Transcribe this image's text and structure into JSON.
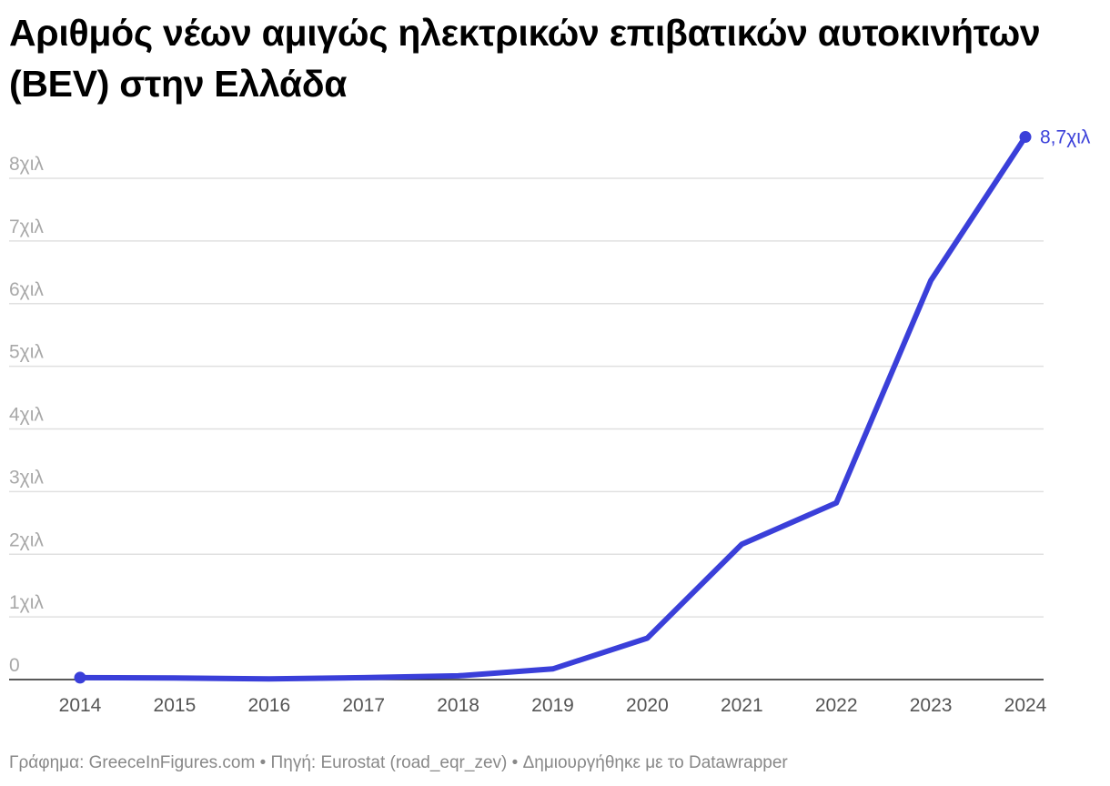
{
  "title": "Αριθμός νέων αμιγώς ηλεκτρικών επιβατικών αυτοκινήτων (BEV) στην Ελλάδα",
  "footer": {
    "credit": "Γράφημα: GreeceInFigures.com",
    "source": "Πηγή: Eurostat (road_eqr_zev)",
    "tool": "Δημιουργήθηκε με το Datawrapper",
    "separator": "•"
  },
  "colors": {
    "line": "#3a3fd9",
    "grid": "#e0e0e0",
    "baseline": "#222222",
    "tick_text": "#a8a8a8",
    "footer_text": "#888888"
  },
  "chart_data": {
    "type": "line",
    "title": "Αριθμός νέων αμιγώς ηλεκτρικών επιβατικών αυτοκινήτων (BEV) στην Ελλάδα",
    "xlabel": "",
    "ylabel": "",
    "x": [
      "2014",
      "2015",
      "2016",
      "2017",
      "2018",
      "2019",
      "2020",
      "2021",
      "2022",
      "2023",
      "2024"
    ],
    "series": [
      {
        "values": [
          30,
          25,
          10,
          30,
          60,
          170,
          660,
          2160,
          2820,
          6370,
          8660
        ]
      }
    ],
    "ylim": [
      0,
      8000
    ],
    "yticks": [
      0,
      1000,
      2000,
      3000,
      4000,
      5000,
      6000,
      7000,
      8000
    ],
    "ytick_labels": [
      "0",
      "1χιλ",
      "2χιλ",
      "3χιλ",
      "4χιλ",
      "5χιλ",
      "6χιλ",
      "7χιλ",
      "8χιλ"
    ],
    "end_label": "8,7χιλ",
    "grid": true,
    "markers": "first-and-last"
  }
}
